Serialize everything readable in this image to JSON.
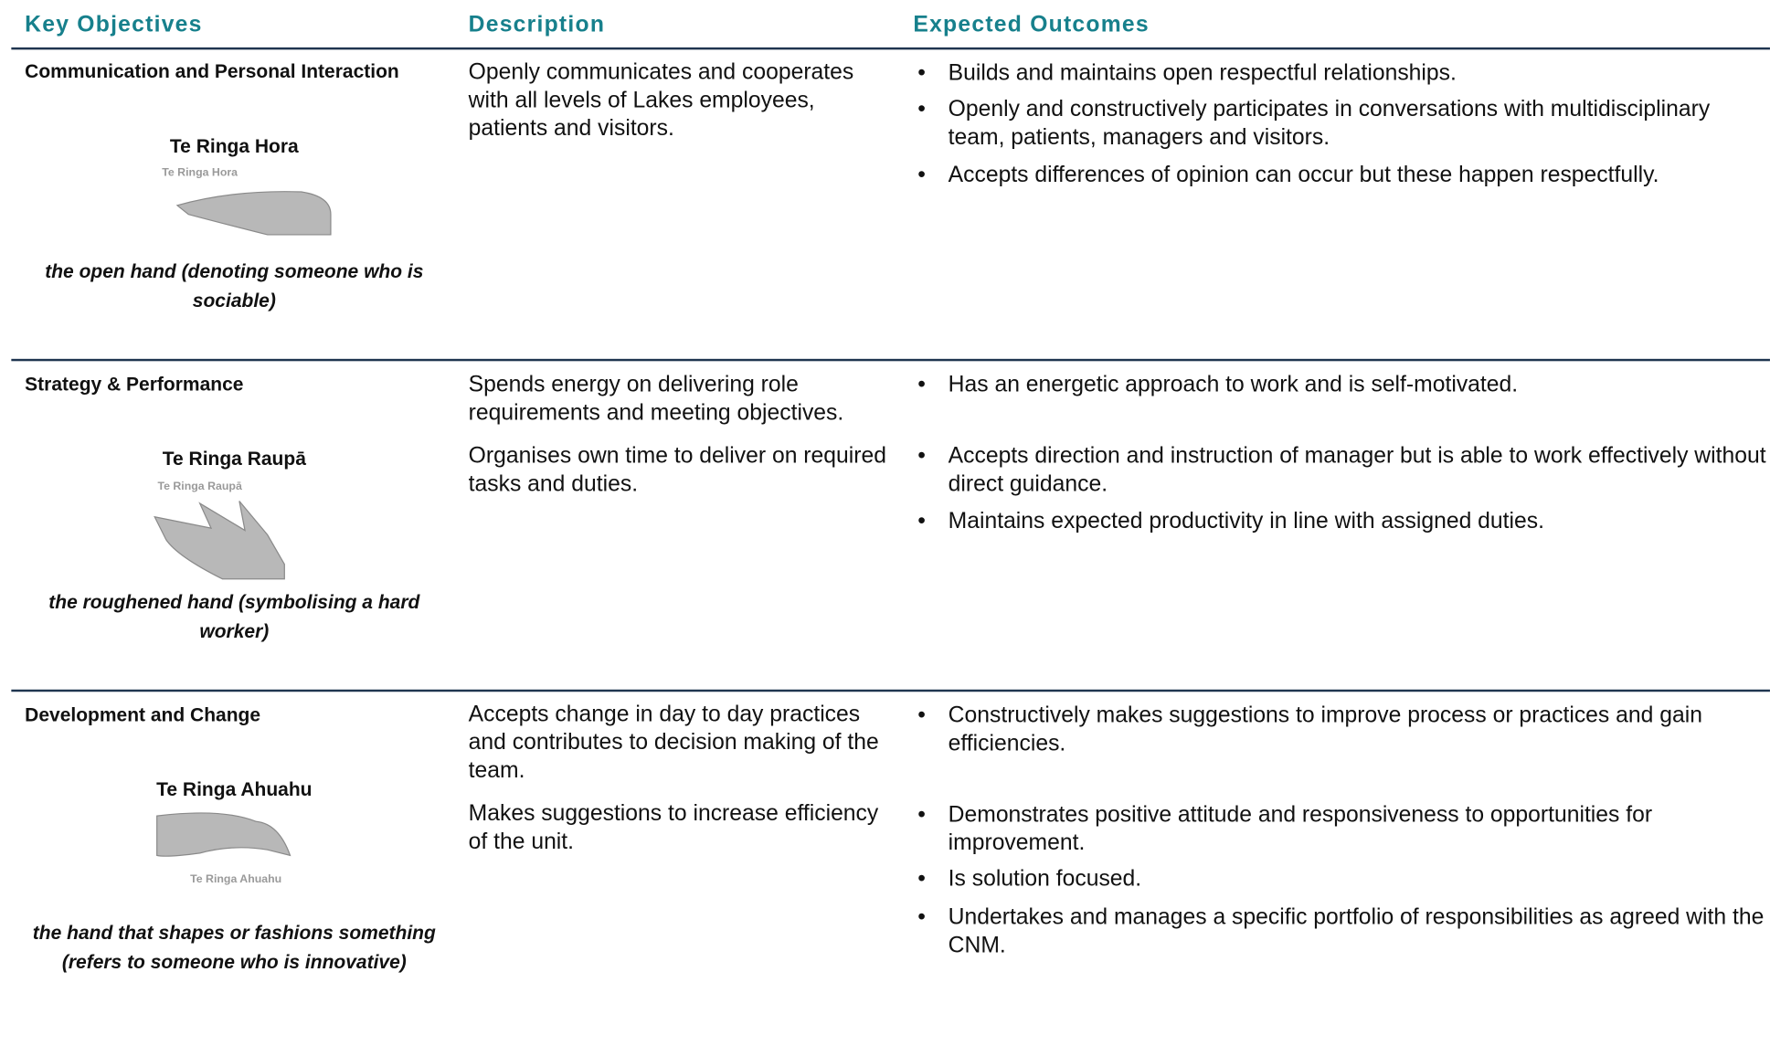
{
  "header": {
    "key_objectives": "Key Objectives",
    "description": "Description",
    "expected_outcomes": "Expected Outcomes"
  },
  "rows": [
    {
      "objective": "Communication and Personal Interaction",
      "maori_name": "Te Ringa Hora",
      "image_label": "Te Ringa Hora",
      "caption": "the open hand (denoting someone who is sociable)",
      "description": [
        "Openly communicates and cooperates with all levels of Lakes employees, patients and visitors."
      ],
      "outcomes": [
        "Builds and maintains open respectful relationships.",
        "Openly and constructively participates in conversations with multidisciplinary team, patients, managers and visitors.",
        "Accepts differences of opinion can occur but these happen respectfully."
      ]
    },
    {
      "objective": "Strategy & Performance",
      "maori_name": "Te Ringa Raupā",
      "image_label": "Te Ringa Raupā",
      "caption": "the roughened hand (symbolising a hard worker)",
      "description": [
        "Spends energy on delivering role requirements and meeting objectives.",
        "Organises own time to deliver on required tasks and duties."
      ],
      "outcomes": [
        "Has an energetic approach to work and is self-motivated.",
        "Accepts direction and instruction of manager but is able to work effectively without direct guidance.",
        "Maintains expected productivity in line with assigned duties."
      ]
    },
    {
      "objective": "Development and Change",
      "maori_name": "Te Ringa Ahuahu",
      "image_label": "Te Ringa Ahuahu",
      "caption": "the hand that shapes or fashions something (refers to someone who is innovative)",
      "description": [
        "Accepts change in day to day practices and contributes to decision making of the team.",
        "Makes suggestions to increase efficiency of the unit."
      ],
      "outcomes": [
        "Constructively makes suggestions to improve process or practices and gain efficiencies.",
        "Demonstrates positive attitude and responsiveness to opportunities for improvement.",
        "Is solution focused.",
        "Undertakes and manages a specific portfolio of responsibilities as agreed with the CNM."
      ]
    }
  ]
}
